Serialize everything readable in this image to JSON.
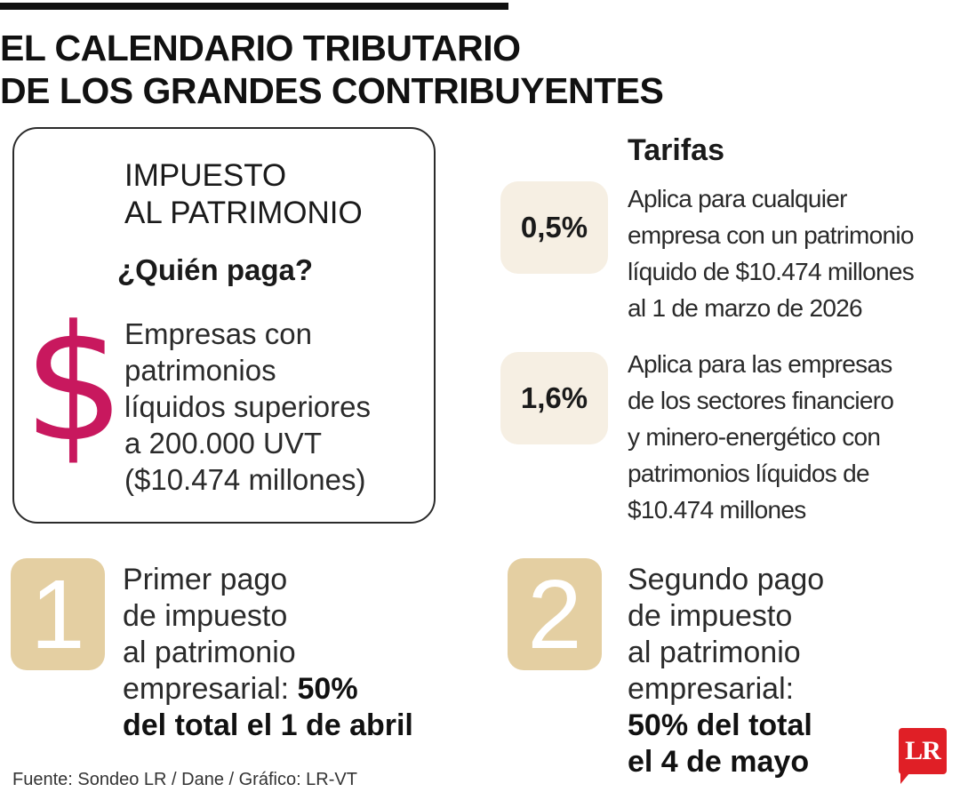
{
  "title": {
    "line1": "EL CALENDARIO TRIBUTARIO",
    "line2": "DE LOS GRANDES CONTRIBUYENTES"
  },
  "tax": {
    "name_line1": "IMPUESTO",
    "name_line2": "AL PATRIMONIO",
    "who_pays_label": "¿Quién paga?",
    "dollar_symbol": "$",
    "who_lines": [
      "Empresas con",
      "patrimonios",
      "líquidos superiores",
      "a 200.000 UVT",
      "($10.474 millones)"
    ]
  },
  "rates": {
    "title": "Tarifas",
    "items": [
      {
        "value": "0,5%",
        "lines": [
          "Aplica para cualquier",
          "empresa con un patrimonio",
          "líquido de $10.474 millones",
          "al 1 de marzo de 2026"
        ]
      },
      {
        "value": "1,6%",
        "lines": [
          "Aplica para las empresas",
          "de los sectores financiero",
          "y minero-energético con",
          "patrimonios líquidos de",
          "$10.474 millones"
        ]
      }
    ]
  },
  "payments": [
    {
      "number": "1",
      "l1": "Primer pago",
      "l2": "de impuesto",
      "l3": "al patrimonio",
      "l4": "empresarial: ",
      "l4_bold": "50%",
      "l5_bold": "del total el 1 de abril"
    },
    {
      "number": "2",
      "l1": "Segundo pago",
      "l2": "de impuesto",
      "l3": "al patrimonio",
      "l4": "empresarial:",
      "l5_bold": "50% del total",
      "l6_bold": "el 4 de mayo"
    }
  ],
  "source": "Fuente: Sondeo LR / Dane / Gráfico: LR-VT",
  "logo": {
    "text": "LR",
    "color": "#e01f26"
  },
  "colors": {
    "accent": "#c8185e",
    "rate_badge": "#f6efe3",
    "step_badge": "#e4cfa2"
  }
}
